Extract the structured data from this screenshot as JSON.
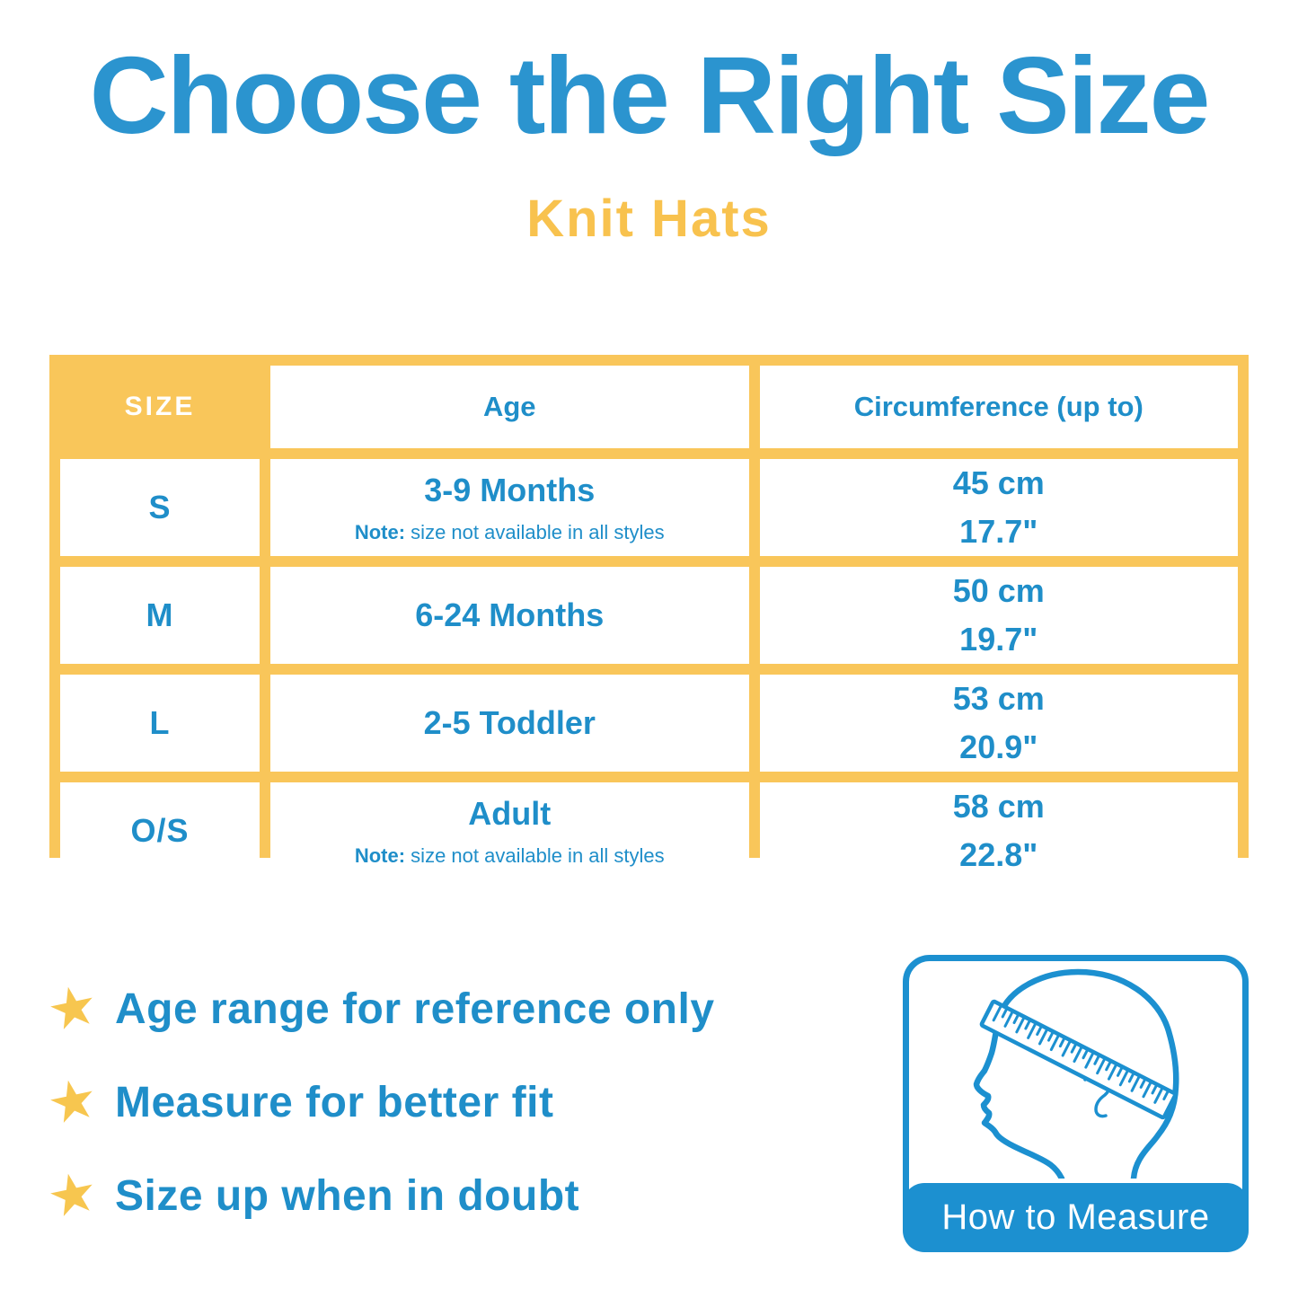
{
  "colors": {
    "title_blue": "#2B94CF",
    "text_blue": "#1F8EC9",
    "yellow": "#F9C65A",
    "subtitle_yellow": "#F8C24E",
    "star_yellow": "#F7C64F",
    "measure_blue": "#1C90D0",
    "white": "#FFFFFF"
  },
  "header": {
    "title": "Choose the Right Size",
    "subtitle": "Knit Hats"
  },
  "size_table": {
    "columns": [
      "SIZE",
      "Age",
      "Circumference (up to)"
    ],
    "rows": [
      {
        "size": "S",
        "age": "3-9 Months",
        "note_label": "Note:",
        "note_text": " size not available in all styles",
        "circumference_cm": "45 cm",
        "circumference_in": "17.7\""
      },
      {
        "size": "M",
        "age": "6-24 Months",
        "circumference_cm": "50 cm",
        "circumference_in": "19.7\""
      },
      {
        "size": "L",
        "age": "2-5 Toddler",
        "circumference_cm": "53 cm",
        "circumference_in": "20.9\""
      },
      {
        "size": "O/S",
        "age": "Adult",
        "note_label": "Note:",
        "note_text": " size not available in all styles",
        "circumference_cm": "58 cm",
        "circumference_in": "22.8\""
      }
    ]
  },
  "tips": {
    "icon": "★",
    "items": [
      "Age range for reference only",
      "Measure for better fit",
      "Size up when in doubt"
    ]
  },
  "measure_box": {
    "label": "How to Measure"
  }
}
